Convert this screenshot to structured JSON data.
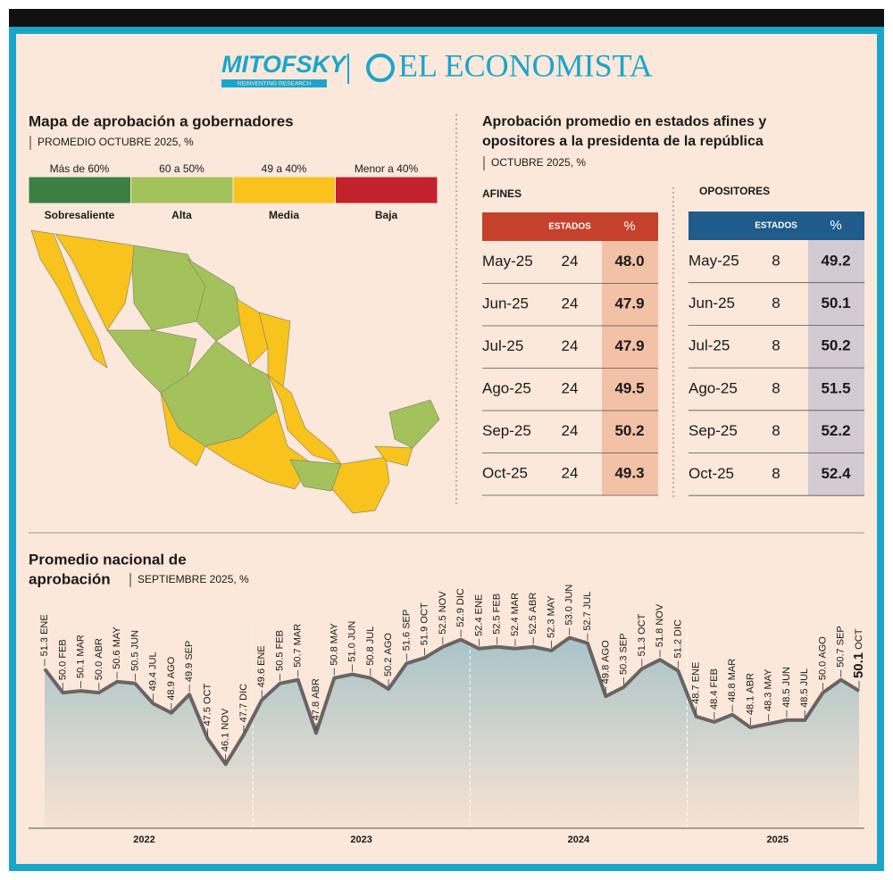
{
  "header": {
    "brand": "MITOFSKY",
    "tagline": "REINVENTING RESEARCH",
    "publication": "EL ECONOMISTA"
  },
  "map": {
    "title": "Mapa de aprobación a gobernadores",
    "subtitle": "PROMEDIO OCTUBRE 2025, %",
    "legend": [
      {
        "range": "Más de 60%",
        "label": "Sobresaliente",
        "color": "#3c7f45"
      },
      {
        "range": "60 a 50%",
        "label": "Alta",
        "color": "#a4c25c"
      },
      {
        "range": "49 a 40%",
        "label": "Media",
        "color": "#f8c31c"
      },
      {
        "range": "Menor a 40%",
        "label": "Baja",
        "color": "#c1222b"
      }
    ]
  },
  "comparison": {
    "title_lines": [
      "Aprobación promedio en estados afines y",
      "opositores a la presidenta de la república"
    ],
    "subtitle": "OCTUBRE 2025, %",
    "tables": [
      {
        "title": "AFINES",
        "color": "#c6412b",
        "cell_color": "#f2c1a6",
        "columns": [
          "ESTADOS",
          "%"
        ],
        "rows": [
          [
            "May-25",
            "24",
            "48.0"
          ],
          [
            "Jun-25",
            "24",
            "47.9"
          ],
          [
            "Jul-25",
            "24",
            "47.9"
          ],
          [
            "Ago-25",
            "24",
            "49.5"
          ],
          [
            "Sep-25",
            "24",
            "50.2"
          ],
          [
            "Oct-25",
            "24",
            "49.3"
          ]
        ]
      },
      {
        "title": "OPOSITORES",
        "color": "#1f5b8b",
        "cell_color": "#d4cad3",
        "columns": [
          "ESTADOS",
          "%"
        ],
        "rows": [
          [
            "May-25",
            "8",
            "49.2"
          ],
          [
            "Jun-25",
            "8",
            "50.1"
          ],
          [
            "Jul-25",
            "8",
            "50.2"
          ],
          [
            "Ago-25",
            "8",
            "51.5"
          ],
          [
            "Sep-25",
            "8",
            "52.2"
          ],
          [
            "Oct-25",
            "8",
            "52.4"
          ]
        ]
      }
    ]
  },
  "chart_data": {
    "type": "line",
    "title_lines": [
      "Promedio nacional de",
      "aprobación"
    ],
    "subtitle": "SEPTIEMBRE 2025, %",
    "categories": [
      "ENE",
      "FEB",
      "MAR",
      "ABR",
      "MAY",
      "JUN",
      "JUL",
      "AGO",
      "SEP",
      "OCT",
      "NOV",
      "DIC",
      "ENE",
      "FEB",
      "MAR",
      "ABR",
      "MAY",
      "JUN",
      "JUL",
      "AGO",
      "SEP",
      "OCT",
      "NOV",
      "DIC",
      "ENE",
      "FEB",
      "MAR",
      "ABR",
      "MAY",
      "JUN",
      "JUL",
      "AGO",
      "SEP",
      "OCT",
      "NOV",
      "DIC",
      "ENE",
      "FEB",
      "MAR",
      "ABR",
      "MAY",
      "JUN",
      "JUL",
      "AGO",
      "SEP",
      "OCT"
    ],
    "values": [
      51.3,
      50.0,
      50.1,
      50.0,
      50.6,
      50.5,
      49.4,
      48.9,
      49.9,
      47.5,
      46.1,
      47.7,
      49.6,
      50.5,
      50.7,
      47.8,
      50.8,
      51.0,
      50.8,
      50.2,
      51.6,
      51.9,
      52.5,
      52.9,
      52.4,
      52.5,
      52.4,
      52.5,
      52.3,
      53.0,
      52.7,
      49.8,
      50.3,
      51.3,
      51.8,
      51.2,
      48.7,
      48.4,
      48.8,
      48.1,
      48.3,
      48.5,
      48.5,
      50.0,
      50.7,
      50.1
    ],
    "value_labels": [
      "51.3",
      "50.0",
      "50.1",
      "50.0",
      "50.6",
      "50.5",
      "49.4",
      "48.9",
      "49.9",
      "47.5",
      "46.1",
      "47.7",
      "49.6",
      "50.5",
      "50.7",
      "47.8",
      "50.8",
      "51.0",
      "50.8",
      "50.2",
      "51.6",
      "51.9",
      "52.5",
      "52.9",
      "52.4",
      "52.5",
      "52.4",
      "52.5",
      "52.3",
      "53.0",
      "52.7",
      "49.8",
      "50.3",
      "51.3",
      "51.8",
      "51.2",
      "48.7",
      "48.4",
      "48.8",
      "48.1",
      "48.3",
      "48.5",
      "48.5",
      "50.0",
      "50.7",
      "50.1"
    ],
    "year_labels": [
      "2022",
      "2023",
      "2024",
      "2025"
    ],
    "ylim": [
      42.6,
      55.9
    ],
    "color": "#6a6464"
  }
}
